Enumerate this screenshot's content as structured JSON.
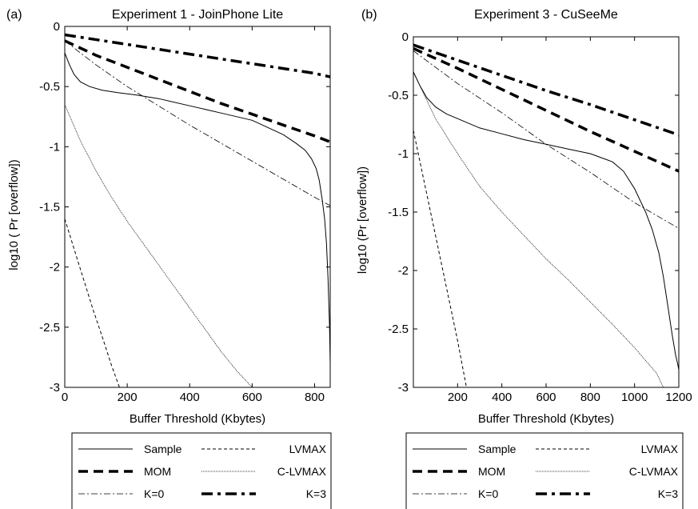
{
  "chart_data": [
    {
      "panel_label": "(a)",
      "type": "line",
      "title": "Experiment 1 - JoinPhone Lite",
      "xlabel": "Buffer Threshold (Kbytes)",
      "ylabel": "log10 ( Pr [overflow])",
      "xlim": [
        0,
        850
      ],
      "ylim": [
        -3,
        0
      ],
      "xticks": [
        0,
        200,
        400,
        600,
        800
      ],
      "xtick_labels": [
        "0",
        "200",
        "400",
        "600",
        "800"
      ],
      "yticks": [
        0,
        -0.5,
        -1,
        -1.5,
        -2,
        -2.5,
        -3
      ],
      "ytick_labels": [
        "0",
        "-0.5",
        "-1",
        "-1.5",
        "-2",
        "-2.5",
        "-3"
      ],
      "grid": false,
      "legend_position": "below",
      "series": [
        {
          "name": "Sample",
          "style": "solid",
          "x": [
            0,
            15,
            30,
            50,
            80,
            120,
            170,
            230,
            300,
            400,
            500,
            600,
            650,
            700,
            740,
            770,
            790,
            805,
            815,
            825,
            832,
            838,
            843,
            848,
            850
          ],
          "y": [
            -0.22,
            -0.32,
            -0.4,
            -0.46,
            -0.5,
            -0.53,
            -0.55,
            -0.57,
            -0.6,
            -0.66,
            -0.72,
            -0.78,
            -0.84,
            -0.9,
            -0.97,
            -1.03,
            -1.1,
            -1.18,
            -1.28,
            -1.45,
            -1.6,
            -1.8,
            -2.1,
            -2.5,
            -2.8
          ]
        },
        {
          "name": "LVMAX",
          "style": "dashed",
          "x": [
            0,
            30,
            60,
            90,
            120,
            150,
            175
          ],
          "y": [
            -1.6,
            -1.85,
            -2.1,
            -2.35,
            -2.58,
            -2.82,
            -3.0
          ]
        },
        {
          "name": "MOM",
          "style": "thick-dashed",
          "x": [
            0,
            100,
            200,
            300,
            400,
            500,
            600,
            700,
            800,
            850
          ],
          "y": [
            -0.12,
            -0.24,
            -0.34,
            -0.44,
            -0.54,
            -0.64,
            -0.73,
            -0.82,
            -0.91,
            -0.96
          ]
        },
        {
          "name": "C-LVMAX",
          "style": "dotted",
          "x": [
            0,
            50,
            100,
            150,
            200,
            250,
            300,
            350,
            400,
            450,
            500,
            550,
            600
          ],
          "y": [
            -0.65,
            -0.95,
            -1.2,
            -1.42,
            -1.62,
            -1.8,
            -1.98,
            -2.16,
            -2.34,
            -2.52,
            -2.7,
            -2.86,
            -3.0
          ]
        },
        {
          "name": "K=0",
          "style": "dash-dot",
          "x": [
            0,
            100,
            200,
            300,
            400,
            500,
            600,
            700,
            800,
            850
          ],
          "y": [
            -0.12,
            -0.32,
            -0.5,
            -0.66,
            -0.82,
            -0.97,
            -1.12,
            -1.27,
            -1.42,
            -1.49
          ]
        },
        {
          "name": "K=3",
          "style": "thick-dash-dot",
          "x": [
            0,
            200,
            400,
            600,
            800,
            850
          ],
          "y": [
            -0.07,
            -0.15,
            -0.23,
            -0.31,
            -0.39,
            -0.42
          ]
        }
      ]
    },
    {
      "panel_label": "(b)",
      "type": "line",
      "title": "Experiment 3 - CuSeeMe",
      "xlabel": "Buffer Threshold (Kbytes)",
      "ylabel": "log10 (Pr [overflow])",
      "xlim": [
        0,
        1200
      ],
      "ylim": [
        -3,
        0
      ],
      "xticks": [
        200,
        400,
        600,
        800,
        1000,
        1200
      ],
      "xtick_labels": [
        "200",
        "400",
        "600",
        "800",
        "1000",
        "1200"
      ],
      "yticks": [
        0,
        -0.5,
        -1,
        -1.5,
        -2,
        -2.5,
        -3
      ],
      "ytick_labels": [
        "0",
        "-0.5",
        "-1",
        "-1.5",
        "-2",
        "-2.5",
        "-3"
      ],
      "grid": false,
      "legend_position": "below",
      "series": [
        {
          "name": "Sample",
          "style": "solid",
          "x": [
            0,
            30,
            60,
            100,
            150,
            200,
            300,
            400,
            500,
            600,
            700,
            800,
            900,
            950,
            1000,
            1050,
            1080,
            1110,
            1130,
            1150,
            1170,
            1185,
            1195,
            1200
          ],
          "y": [
            -0.3,
            -0.42,
            -0.52,
            -0.6,
            -0.66,
            -0.7,
            -0.78,
            -0.83,
            -0.88,
            -0.92,
            -0.96,
            -1.0,
            -1.07,
            -1.15,
            -1.3,
            -1.5,
            -1.65,
            -1.85,
            -2.05,
            -2.3,
            -2.55,
            -2.72,
            -2.8,
            -2.85
          ]
        },
        {
          "name": "LVMAX",
          "style": "dashed",
          "x": [
            0,
            50,
            100,
            150,
            200,
            240
          ],
          "y": [
            -0.8,
            -1.25,
            -1.7,
            -2.15,
            -2.6,
            -3.0
          ]
        },
        {
          "name": "MOM",
          "style": "thick-dashed",
          "x": [
            0,
            200,
            400,
            600,
            800,
            1000,
            1200
          ],
          "y": [
            -0.1,
            -0.27,
            -0.45,
            -0.63,
            -0.81,
            -0.98,
            -1.15
          ]
        },
        {
          "name": "C-LVMAX",
          "style": "dotted",
          "x": [
            0,
            50,
            100,
            200,
            300,
            400,
            500,
            600,
            700,
            800,
            900,
            1000,
            1100,
            1130
          ],
          "y": [
            -0.3,
            -0.5,
            -0.7,
            -1.0,
            -1.28,
            -1.5,
            -1.7,
            -1.9,
            -2.08,
            -2.27,
            -2.46,
            -2.66,
            -2.88,
            -3.0
          ]
        },
        {
          "name": "K=0",
          "style": "dash-dot",
          "x": [
            0,
            200,
            400,
            600,
            800,
            1000,
            1200
          ],
          "y": [
            -0.12,
            -0.4,
            -0.65,
            -0.92,
            -1.16,
            -1.42,
            -1.64
          ]
        },
        {
          "name": "K=3",
          "style": "thick-dash-dot",
          "x": [
            0,
            200,
            400,
            600,
            800,
            1000,
            1200
          ],
          "y": [
            -0.07,
            -0.2,
            -0.33,
            -0.46,
            -0.58,
            -0.71,
            -0.84
          ]
        }
      ]
    }
  ],
  "legend_columns": [
    [
      {
        "name": "Sample",
        "style": "solid"
      },
      {
        "name": "MOM",
        "style": "thick-dashed"
      },
      {
        "name": "K=0",
        "style": "dash-dot"
      }
    ],
    [
      {
        "name": "LVMAX",
        "style": "dashed"
      },
      {
        "name": "C-LVMAX",
        "style": "dotted"
      },
      {
        "name": "K=3",
        "style": "thick-dash-dot"
      }
    ]
  ]
}
